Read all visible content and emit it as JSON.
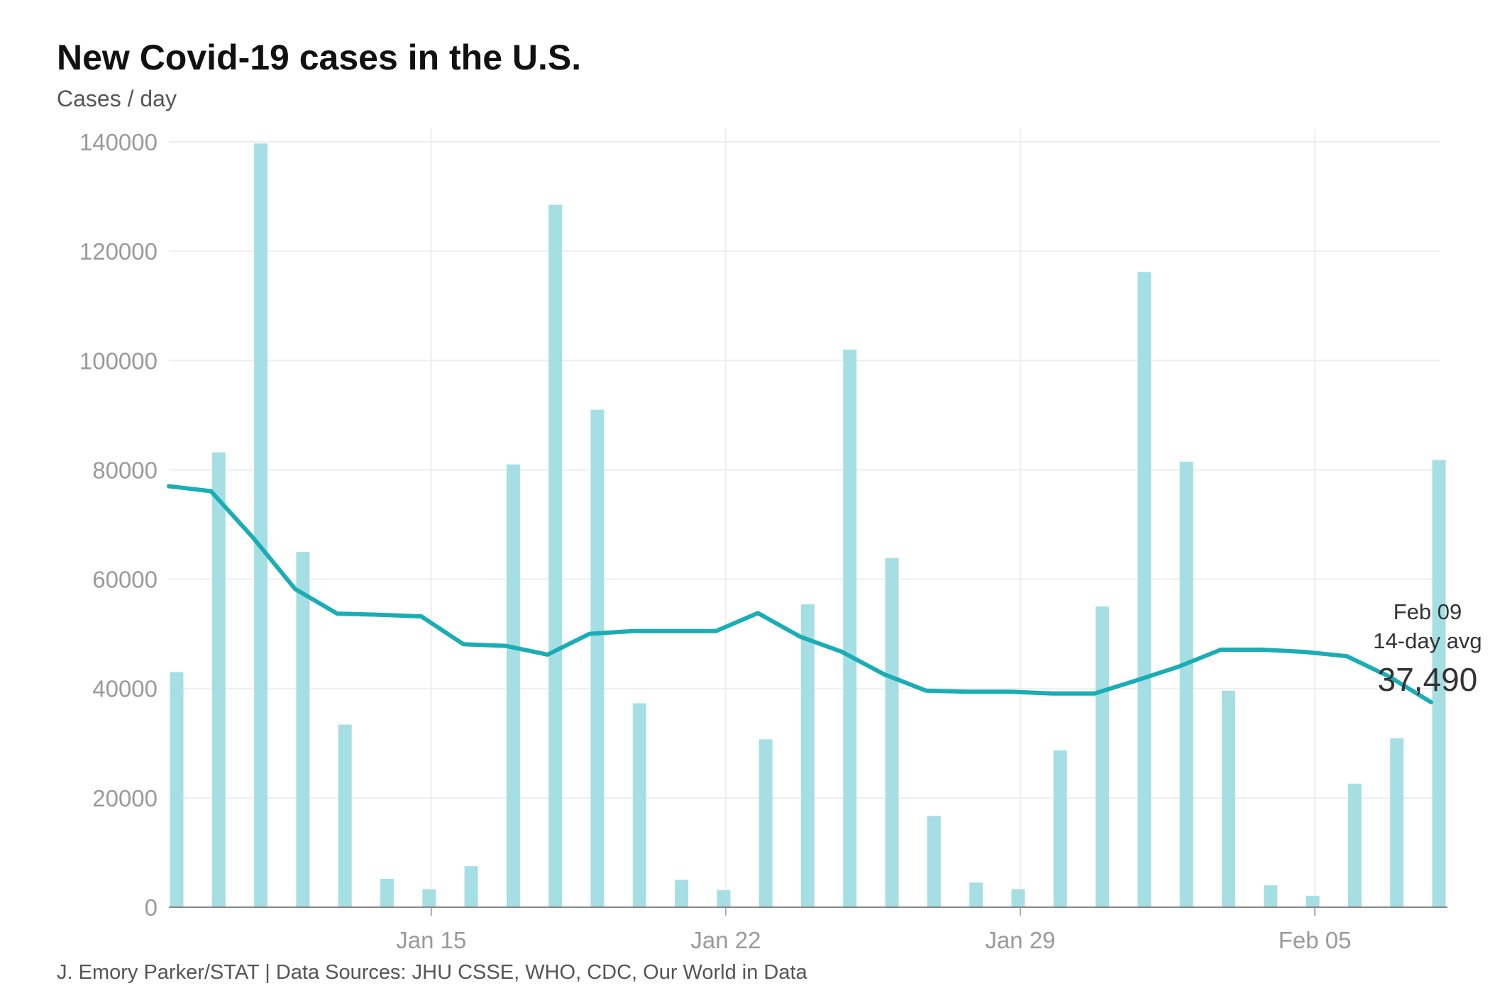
{
  "chart_data": {
    "type": "bar",
    "title": "New Covid-19 cases in the U.S.",
    "subtitle": "Cases / day",
    "source": "J. Emory Parker/STAT | Data Sources: JHU CSSE, WHO, CDC, Our World in Data",
    "xlabel": "",
    "ylabel": "",
    "ylim": [
      0,
      140000
    ],
    "yticks": [
      0,
      20000,
      40000,
      60000,
      80000,
      100000,
      120000,
      140000
    ],
    "xticks": [
      "Jan 15",
      "Jan 22",
      "Jan 29",
      "Feb 05"
    ],
    "grid": true,
    "x": [
      "Jan 09",
      "Jan 10",
      "Jan 11",
      "Jan 12",
      "Jan 13",
      "Jan 14",
      "Jan 15",
      "Jan 16",
      "Jan 17",
      "Jan 18",
      "Jan 19",
      "Jan 20",
      "Jan 21",
      "Jan 22",
      "Jan 23",
      "Jan 24",
      "Jan 25",
      "Jan 26",
      "Jan 27",
      "Jan 28",
      "Jan 29",
      "Jan 30",
      "Jan 31",
      "Feb 01",
      "Feb 02",
      "Feb 03",
      "Feb 04",
      "Feb 05",
      "Feb 06",
      "Feb 07",
      "Feb 08"
    ],
    "series": [
      {
        "type": "bar",
        "color": "#a6dfe3",
        "values": [
          43000,
          83200,
          139700,
          65000,
          33400,
          5200,
          3300,
          7500,
          81000,
          128500,
          91000,
          37300,
          5000,
          3100,
          30700,
          55400,
          102000,
          63900,
          16700,
          4500,
          3300,
          28700,
          55000,
          116200,
          81500,
          39600,
          4000,
          2100,
          22600,
          30900,
          81800
        ]
      },
      {
        "type": "line",
        "color": "#1aadb5",
        "values": [
          77000,
          76100,
          67600,
          58200,
          53700,
          53500,
          53200,
          48100,
          47800,
          46200,
          50000,
          50500,
          50500,
          50500,
          53800,
          49500,
          46700,
          42600,
          39600,
          39400,
          39400,
          39100,
          39100,
          41500,
          44000,
          47100,
          47100,
          46700,
          45900,
          42200,
          37490
        ]
      }
    ],
    "annotation": {
      "date": "Feb 09",
      "label": "14-day avg",
      "value": "37,490"
    }
  }
}
